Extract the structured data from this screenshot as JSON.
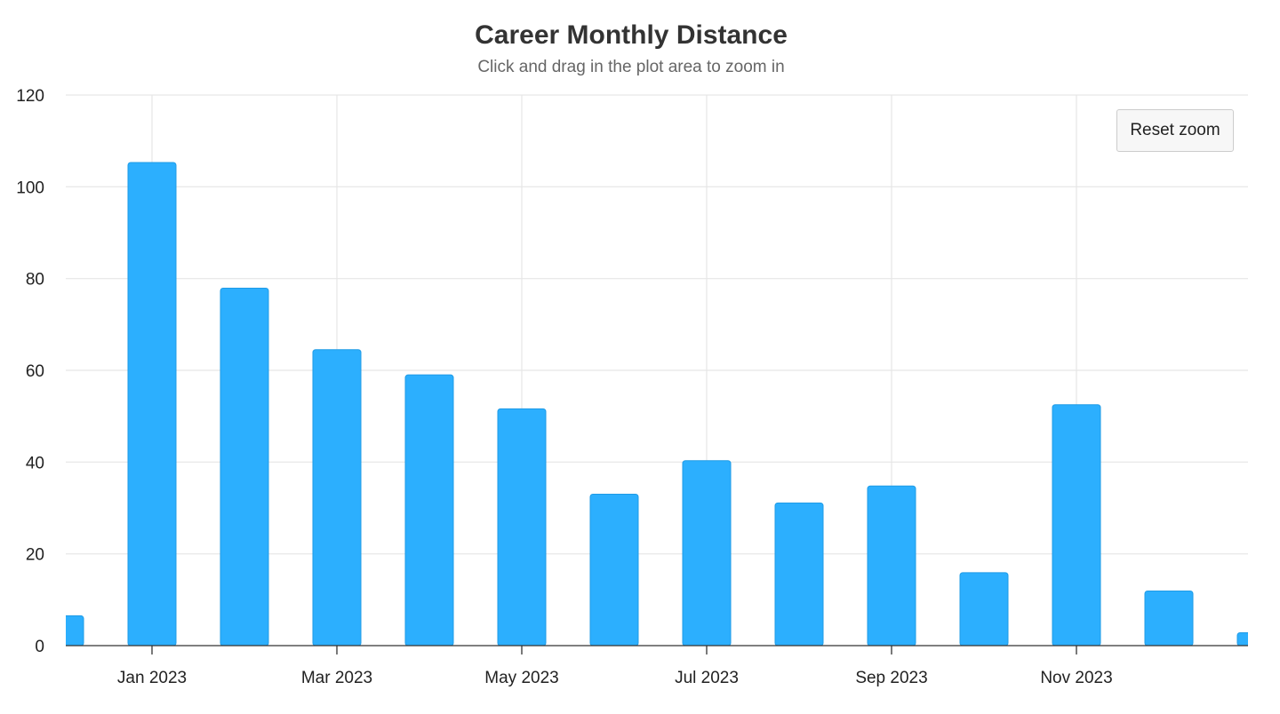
{
  "chart_data": {
    "type": "bar",
    "title": "Career Monthly Distance",
    "subtitle": "Click and drag in the plot area to zoom in",
    "xlabel": "",
    "ylabel": "",
    "x": [
      "2022-12",
      "2023-01",
      "2023-02",
      "2023-03",
      "2023-04",
      "2023-05",
      "2023-06",
      "2023-07",
      "2023-08",
      "2023-09",
      "2023-10",
      "2023-11",
      "2023-12",
      "2024-01"
    ],
    "values": [
      6.5,
      105.3,
      77.9,
      64.5,
      59.0,
      51.6,
      33.0,
      40.3,
      31.1,
      34.8,
      15.9,
      52.5,
      11.9,
      2.8
    ],
    "ylim": [
      0,
      120
    ],
    "yticks": [
      0,
      20,
      40,
      60,
      80,
      100,
      120
    ],
    "ytick_labels": [
      "0",
      "20",
      "40",
      "60",
      "80",
      "100",
      "120"
    ],
    "xtick_labels": [
      "Jan 2023",
      "Mar 2023",
      "May 2023",
      "Jul 2023",
      "Sep 2023",
      "Nov 2023"
    ],
    "grid": true,
    "legend": "none",
    "bar_color": "#2caffe"
  },
  "controls": {
    "reset_zoom_label": "Reset zoom"
  }
}
